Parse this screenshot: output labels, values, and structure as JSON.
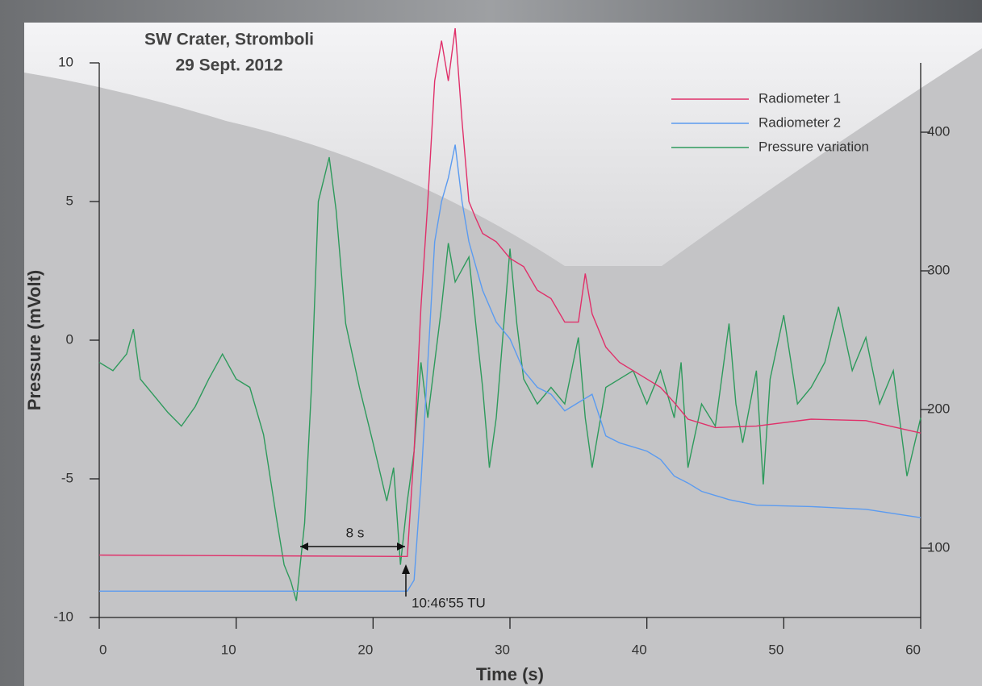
{
  "chart_data": {
    "type": "line",
    "title": "SW Crater, Stromboli",
    "subtitle": "29 Sept. 2012",
    "x_label": "Time (s)",
    "y_label": "Pressure (mVolt)",
    "annotations": [
      "8 s",
      "10:46'55 TU"
    ],
    "xlim": [
      0,
      60
    ],
    "xticks": [
      0,
      10,
      20,
      30,
      40,
      50,
      60
    ],
    "ylim": [
      -10,
      10
    ],
    "yticks": [
      -10,
      -5,
      0,
      5,
      10
    ],
    "y2lim": [
      50,
      450
    ],
    "y2ticks": [
      100,
      200,
      300,
      400
    ],
    "legend": "top-right",
    "series": [
      {
        "name": "Radiometer 1",
        "color": "#e0306a",
        "axis": "y2",
        "x": [
          0,
          22.5,
          23,
          23.5,
          24,
          24.5,
          25,
          25.5,
          26,
          26.5,
          27,
          27.5,
          28,
          29,
          30,
          31,
          32,
          33,
          34,
          35,
          35.5,
          36,
          37,
          38,
          39,
          40,
          41,
          42,
          43,
          45,
          48,
          52,
          56,
          60
        ],
        "values": [
          95,
          94,
          170,
          274,
          350,
          437,
          466,
          437,
          475,
          408,
          350,
          338,
          327,
          321,
          309,
          303,
          286,
          280,
          263,
          263,
          298,
          269,
          245,
          234,
          228,
          222,
          216,
          205,
          193,
          187,
          188,
          193,
          192,
          183
        ]
      },
      {
        "name": "Radiometer 2",
        "color": "#5b9bf0",
        "axis": "y2",
        "x": [
          0,
          22.5,
          23,
          23.5,
          24,
          24.5,
          25,
          25.5,
          26,
          26.5,
          27,
          28,
          29,
          30,
          31,
          32,
          33,
          34,
          35,
          36,
          37,
          38,
          39,
          40,
          41,
          42,
          43,
          44,
          46,
          48,
          52,
          56,
          60
        ],
        "values": [
          69,
          69,
          77,
          147,
          234,
          321,
          350,
          367,
          391,
          350,
          321,
          286,
          263,
          251,
          228,
          216,
          211,
          199,
          205,
          211,
          181,
          176,
          173,
          170,
          164,
          152,
          147,
          141,
          135,
          131,
          130,
          128,
          122
        ]
      },
      {
        "name": "Pressure variation",
        "color": "#2e9a5c",
        "x": [
          0,
          1,
          2,
          2.5,
          3,
          4,
          5,
          6,
          7,
          8,
          9,
          10,
          11,
          12,
          13,
          13.5,
          14,
          14.4,
          15,
          15.5,
          16,
          16.5,
          16.8,
          17.3,
          18,
          19,
          20,
          21,
          21.5,
          22,
          22.5,
          23,
          23.5,
          24,
          25,
          25.5,
          26,
          27,
          27.5,
          28,
          28.5,
          29,
          30,
          30.5,
          31,
          32,
          33,
          34,
          35,
          35.5,
          36,
          37,
          38,
          39,
          40,
          41,
          42,
          42.5,
          43,
          44,
          45,
          46,
          46.5,
          47,
          48,
          48.5,
          49,
          50,
          51,
          52,
          53,
          54,
          55,
          56,
          57,
          58,
          59,
          60
        ],
        "values": [
          -0.8,
          -1.1,
          -0.5,
          0.4,
          -1.4,
          -2,
          -2.6,
          -3.1,
          -2.4,
          -1.4,
          -0.5,
          -1.4,
          -1.7,
          -3.4,
          -6.6,
          -8.1,
          -8.7,
          -9.4,
          -6.6,
          -1.7,
          5,
          6,
          6.6,
          4.7,
          0.6,
          -1.7,
          -3.7,
          -5.8,
          -4.6,
          -8.1,
          -5.8,
          -4,
          -0.8,
          -2.8,
          1.2,
          3.5,
          2.1,
          3,
          0.6,
          -1.7,
          -4.6,
          -2.8,
          3.3,
          0.6,
          -1.4,
          -2.3,
          -1.7,
          -2.3,
          0.1,
          -2.8,
          -4.6,
          -1.7,
          -1.4,
          -1.1,
          -2.3,
          -1.1,
          -2.8,
          -0.8,
          -4.6,
          -2.3,
          -3.1,
          0.6,
          -2.3,
          -3.7,
          -1.1,
          -5.2,
          -1.4,
          0.9,
          -2.3,
          -1.7,
          -0.8,
          1.2,
          -1.1,
          0.1,
          -2.3,
          -1.1,
          -4.9,
          -2.8
        ]
      }
    ]
  }
}
